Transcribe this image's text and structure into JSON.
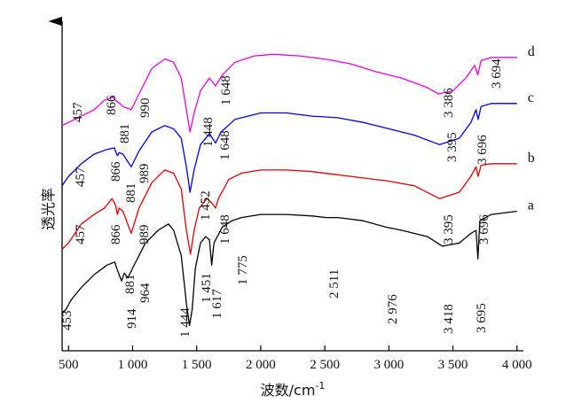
{
  "chart_data": {
    "type": "line",
    "title": "",
    "xlabel": "波数/cm",
    "xlabel_superscript": "-1",
    "ylabel": "透光率",
    "xlim": [
      450,
      4050
    ],
    "x_ticks": [
      500,
      1000,
      1500,
      2000,
      2500,
      3000,
      3500,
      4000
    ],
    "x_tick_labels": [
      "500",
      "1 000",
      "1 500",
      "2 000",
      "2 500",
      "3 000",
      "3 500",
      "4 000"
    ],
    "grid": false,
    "y_ticks": false,
    "colors": {
      "a": "#000000",
      "b": "#e00000",
      "c": "#0000dd",
      "d": "#e800e8"
    },
    "series": [
      {
        "name": "a",
        "color": "#000000",
        "points": [
          [
            450,
            0.12
          ],
          [
            480,
            0.13
          ],
          [
            520,
            0.16
          ],
          [
            600,
            0.2
          ],
          [
            700,
            0.24
          ],
          [
            800,
            0.27
          ],
          [
            860,
            0.28
          ],
          [
            881,
            0.255
          ],
          [
            895,
            0.24
          ],
          [
            914,
            0.22
          ],
          [
            935,
            0.245
          ],
          [
            964,
            0.23
          ],
          [
            1000,
            0.26
          ],
          [
            1100,
            0.34
          ],
          [
            1200,
            0.38
          ],
          [
            1280,
            0.4
          ],
          [
            1320,
            0.38
          ],
          [
            1380,
            0.3
          ],
          [
            1420,
            0.15
          ],
          [
            1444,
            0.08
          ],
          [
            1465,
            0.13
          ],
          [
            1490,
            0.26
          ],
          [
            1530,
            0.34
          ],
          [
            1570,
            0.36
          ],
          [
            1600,
            0.35
          ],
          [
            1617,
            0.27
          ],
          [
            1635,
            0.34
          ],
          [
            1700,
            0.39
          ],
          [
            1775,
            0.41
          ],
          [
            1850,
            0.42
          ],
          [
            2000,
            0.43
          ],
          [
            2200,
            0.43
          ],
          [
            2400,
            0.425
          ],
          [
            2511,
            0.42
          ],
          [
            2600,
            0.42
          ],
          [
            2800,
            0.41
          ],
          [
            2976,
            0.39
          ],
          [
            3100,
            0.38
          ],
          [
            3300,
            0.36
          ],
          [
            3418,
            0.33
          ],
          [
            3550,
            0.34
          ],
          [
            3640,
            0.37
          ],
          [
            3680,
            0.38
          ],
          [
            3695,
            0.29
          ],
          [
            3710,
            0.41
          ],
          [
            3800,
            0.43
          ],
          [
            4000,
            0.44
          ]
        ]
      },
      {
        "name": "b",
        "color": "#e00000",
        "points": [
          [
            450,
            0.32
          ],
          [
            500,
            0.34
          ],
          [
            600,
            0.4
          ],
          [
            700,
            0.43
          ],
          [
            780,
            0.45
          ],
          [
            840,
            0.48
          ],
          [
            866,
            0.46
          ],
          [
            881,
            0.43
          ],
          [
            895,
            0.45
          ],
          [
            925,
            0.44
          ],
          [
            989,
            0.37
          ],
          [
            1050,
            0.45
          ],
          [
            1150,
            0.53
          ],
          [
            1250,
            0.57
          ],
          [
            1320,
            0.56
          ],
          [
            1380,
            0.51
          ],
          [
            1420,
            0.38
          ],
          [
            1452,
            0.305
          ],
          [
            1480,
            0.38
          ],
          [
            1520,
            0.45
          ],
          [
            1580,
            0.48
          ],
          [
            1620,
            0.465
          ],
          [
            1648,
            0.45
          ],
          [
            1670,
            0.48
          ],
          [
            1750,
            0.54
          ],
          [
            1850,
            0.56
          ],
          [
            2000,
            0.57
          ],
          [
            2200,
            0.57
          ],
          [
            2400,
            0.565
          ],
          [
            2600,
            0.555
          ],
          [
            2800,
            0.545
          ],
          [
            3000,
            0.535
          ],
          [
            3200,
            0.52
          ],
          [
            3395,
            0.48
          ],
          [
            3550,
            0.5
          ],
          [
            3640,
            0.55
          ],
          [
            3680,
            0.58
          ],
          [
            3696,
            0.55
          ],
          [
            3720,
            0.585
          ],
          [
            3800,
            0.59
          ],
          [
            4000,
            0.59
          ]
        ]
      },
      {
        "name": "c",
        "color": "#0000dd",
        "points": [
          [
            450,
            0.52
          ],
          [
            500,
            0.55
          ],
          [
            600,
            0.59
          ],
          [
            700,
            0.62
          ],
          [
            800,
            0.635
          ],
          [
            860,
            0.64
          ],
          [
            866,
            0.63
          ],
          [
            881,
            0.615
          ],
          [
            895,
            0.625
          ],
          [
            925,
            0.62
          ],
          [
            989,
            0.58
          ],
          [
            1050,
            0.63
          ],
          [
            1150,
            0.69
          ],
          [
            1250,
            0.71
          ],
          [
            1320,
            0.7
          ],
          [
            1380,
            0.67
          ],
          [
            1420,
            0.58
          ],
          [
            1448,
            0.5
          ],
          [
            1480,
            0.57
          ],
          [
            1530,
            0.65
          ],
          [
            1600,
            0.685
          ],
          [
            1648,
            0.655
          ],
          [
            1690,
            0.69
          ],
          [
            1800,
            0.73
          ],
          [
            2000,
            0.75
          ],
          [
            2200,
            0.75
          ],
          [
            2400,
            0.74
          ],
          [
            2600,
            0.735
          ],
          [
            2800,
            0.72
          ],
          [
            3000,
            0.7
          ],
          [
            3200,
            0.68
          ],
          [
            3395,
            0.65
          ],
          [
            3550,
            0.67
          ],
          [
            3640,
            0.72
          ],
          [
            3680,
            0.76
          ],
          [
            3696,
            0.73
          ],
          [
            3720,
            0.77
          ],
          [
            3800,
            0.78
          ],
          [
            4000,
            0.78
          ]
        ]
      },
      {
        "name": "d",
        "color": "#e800e8",
        "points": [
          [
            450,
            0.71
          ],
          [
            500,
            0.72
          ],
          [
            600,
            0.74
          ],
          [
            700,
            0.76
          ],
          [
            780,
            0.79
          ],
          [
            850,
            0.8
          ],
          [
            866,
            0.79
          ],
          [
            900,
            0.78
          ],
          [
            925,
            0.77
          ],
          [
            990,
            0.76
          ],
          [
            1050,
            0.81
          ],
          [
            1150,
            0.89
          ],
          [
            1250,
            0.92
          ],
          [
            1320,
            0.91
          ],
          [
            1380,
            0.86
          ],
          [
            1420,
            0.76
          ],
          [
            1448,
            0.69
          ],
          [
            1480,
            0.75
          ],
          [
            1530,
            0.82
          ],
          [
            1600,
            0.86
          ],
          [
            1648,
            0.835
          ],
          [
            1700,
            0.87
          ],
          [
            1800,
            0.91
          ],
          [
            1950,
            0.93
          ],
          [
            2100,
            0.935
          ],
          [
            2300,
            0.93
          ],
          [
            2500,
            0.92
          ],
          [
            2700,
            0.905
          ],
          [
            2900,
            0.88
          ],
          [
            3100,
            0.86
          ],
          [
            3300,
            0.83
          ],
          [
            3386,
            0.81
          ],
          [
            3500,
            0.82
          ],
          [
            3600,
            0.86
          ],
          [
            3670,
            0.9
          ],
          [
            3694,
            0.87
          ],
          [
            3720,
            0.915
          ],
          [
            3800,
            0.925
          ],
          [
            4000,
            0.925
          ]
        ]
      }
    ],
    "annotations": [
      {
        "series": "a",
        "labels": [
          "453",
          "881",
          "914",
          "964",
          "1 444",
          "1 451",
          "1 617",
          "1 775",
          "2 511",
          "2 976",
          "3 418",
          "3 695"
        ]
      },
      {
        "series": "b",
        "labels": [
          "457",
          "866",
          "881",
          "989",
          "1 452",
          "1 648",
          "3 395",
          "3 696"
        ]
      },
      {
        "series": "c",
        "labels": [
          "457",
          "866",
          "881",
          "989",
          "1 448",
          "1 648",
          "3 395",
          "3 696"
        ]
      },
      {
        "series": "d",
        "labels": [
          "457",
          "866",
          "990",
          "1 648",
          "3 386",
          "3 694"
        ]
      }
    ]
  }
}
